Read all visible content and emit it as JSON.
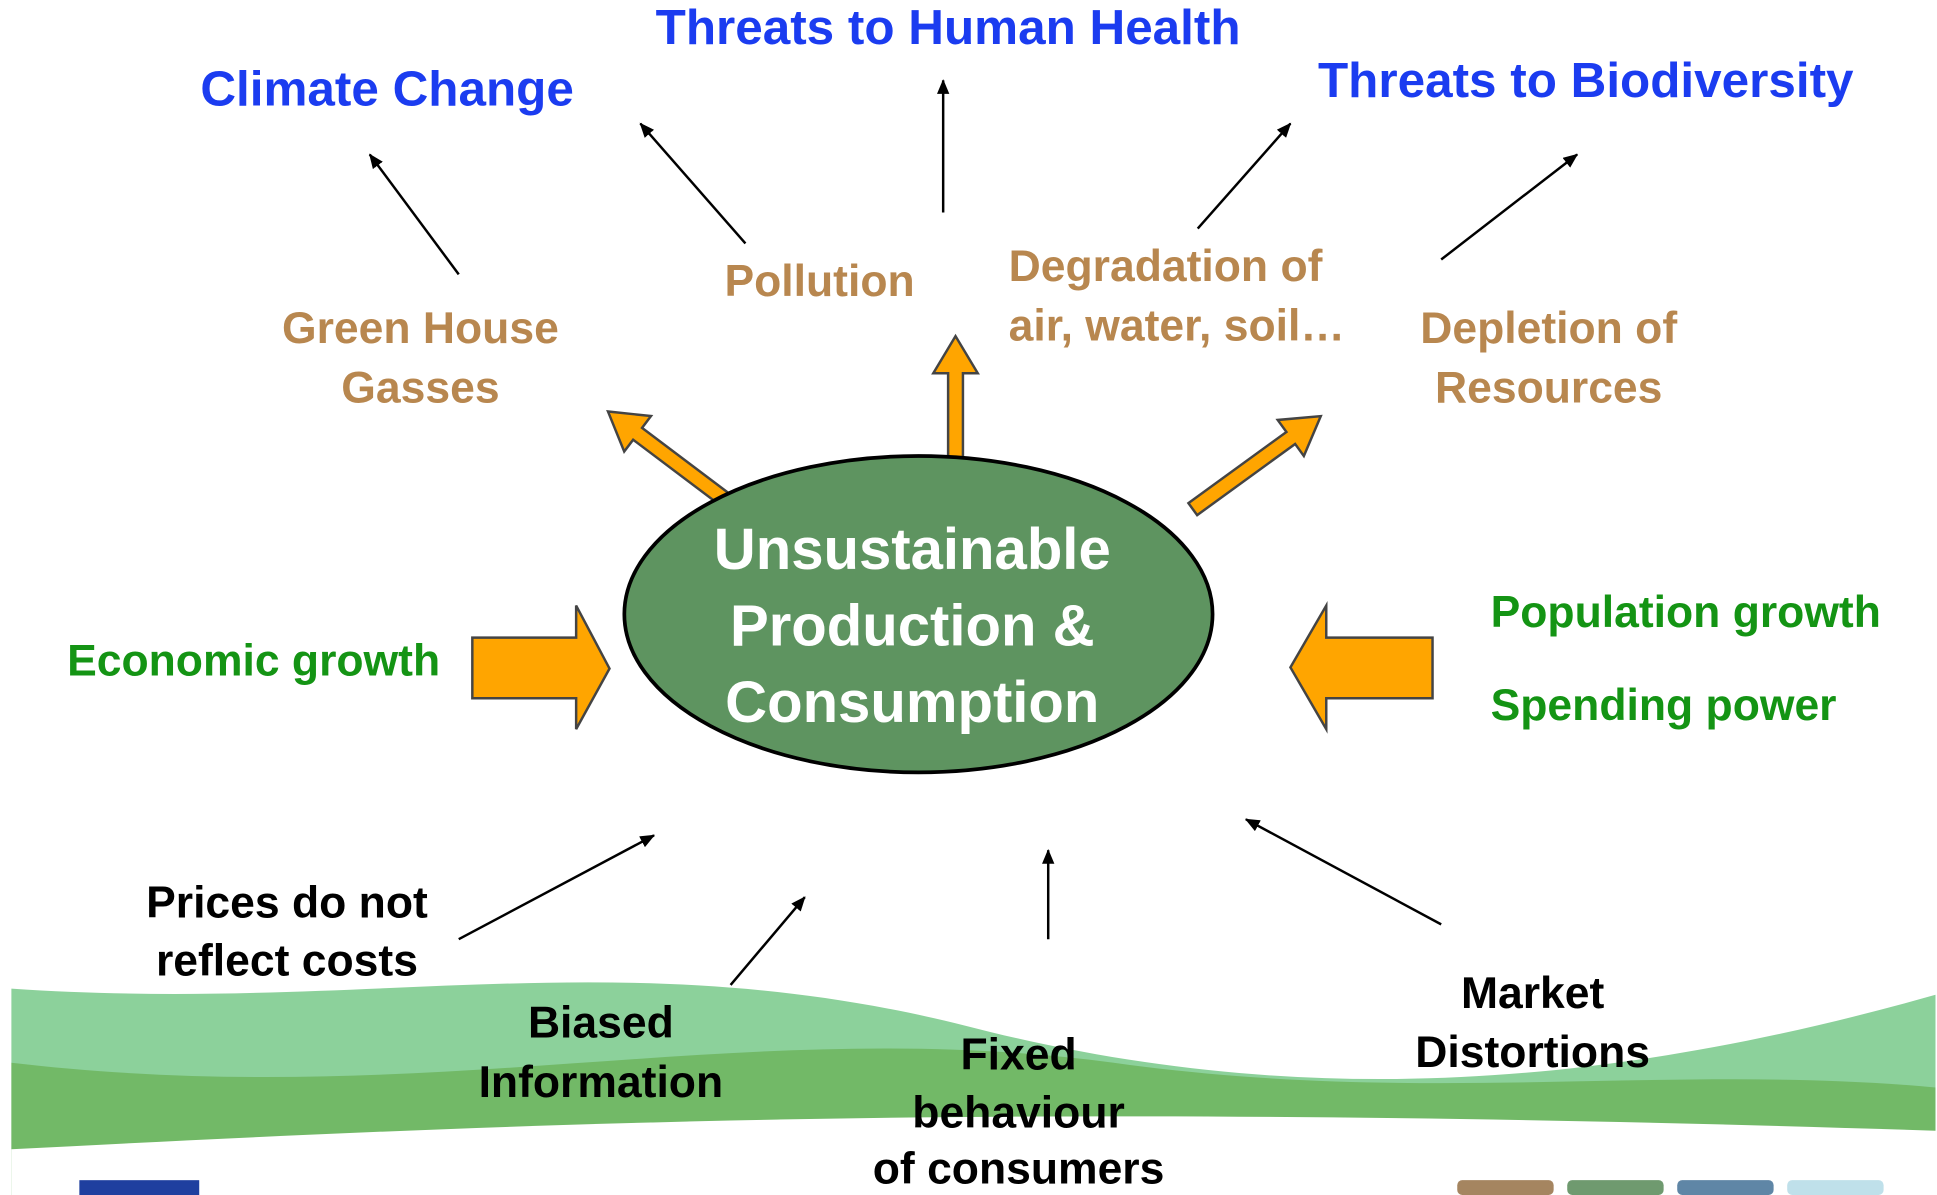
{
  "center": {
    "lines": [
      "Unsustainable",
      "Production &",
      "Consumption"
    ]
  },
  "impacts": [
    {
      "lines": [
        "Climate Change"
      ]
    },
    {
      "lines": [
        "Threats to Human Health"
      ]
    },
    {
      "lines": [
        "Threats to Biodiversity"
      ]
    }
  ],
  "pressures": [
    {
      "lines": [
        "Green House",
        "Gasses"
      ]
    },
    {
      "lines": [
        "Pollution"
      ]
    },
    {
      "lines": [
        "Degradation of",
        "air, water, soil…"
      ]
    },
    {
      "lines": [
        "Depletion of",
        "Resources"
      ]
    }
  ],
  "drivers": {
    "left": [
      "Economic growth"
    ],
    "right": [
      "Population growth",
      "Spending power"
    ]
  },
  "causes": [
    {
      "lines": [
        "Prices do not",
        "reflect costs"
      ]
    },
    {
      "lines": [
        "Biased",
        "Information"
      ]
    },
    {
      "lines": [
        "Fixed",
        "behaviour",
        "of consumers"
      ]
    },
    {
      "lines": [
        "Market",
        "Distortions"
      ]
    }
  ]
}
